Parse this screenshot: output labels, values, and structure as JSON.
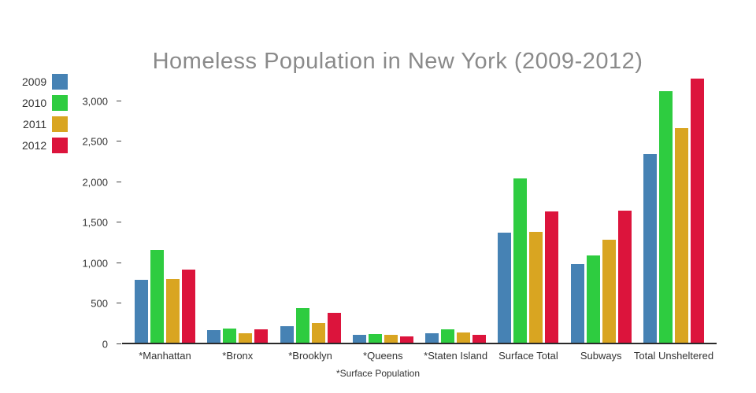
{
  "chart_data": {
    "type": "bar",
    "title": "Homeless Population in New York (2009-2012)",
    "xlabel": "*Surface Population",
    "ylabel": "",
    "categories": [
      "*Manhattan",
      "*Bronx",
      "*Brooklyn",
      "*Queens",
      "*Staten Island",
      "Surface Total",
      "Subways",
      "Total Unsheltered"
    ],
    "series": [
      {
        "name": "2009",
        "color": "#4682B4",
        "values": [
          780,
          160,
          200,
          95,
          120,
          1360,
          970,
          2330
        ]
      },
      {
        "name": "2010",
        "color": "#2ECC40",
        "values": [
          1145,
          170,
          425,
          110,
          165,
          2030,
          1080,
          3110
        ]
      },
      {
        "name": "2011",
        "color": "#D9A521",
        "values": [
          790,
          120,
          240,
          100,
          130,
          1370,
          1275,
          2650
        ]
      },
      {
        "name": "2012",
        "color": "#DC143C",
        "values": [
          905,
          165,
          365,
          80,
          100,
          1625,
          1630,
          3260
        ]
      }
    ],
    "yticks": [
      0,
      500,
      1000,
      1500,
      2000,
      2500,
      3000
    ],
    "ylim": [
      0,
      3280
    ],
    "grid": false,
    "legend_position": "top-left-outside",
    "title_color": "#8a8a8a",
    "background_color": "#ffffff"
  }
}
